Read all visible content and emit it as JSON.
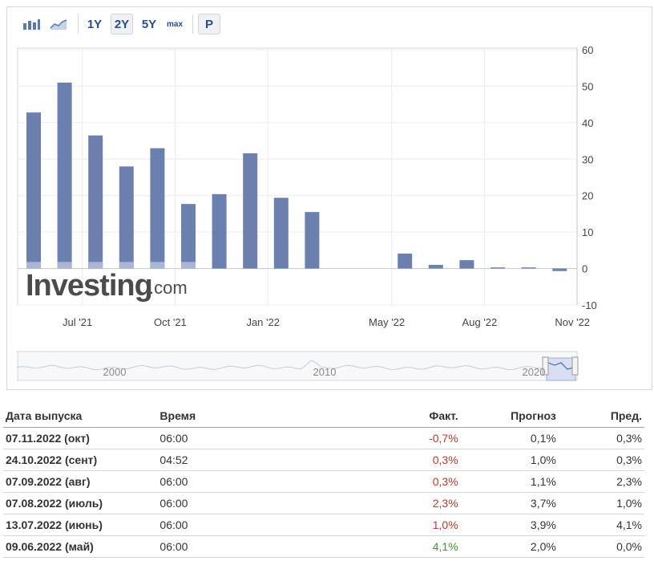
{
  "toolbar": {
    "buttons": [
      {
        "id": "bars",
        "icon": "bar-chart-icon"
      },
      {
        "id": "area",
        "icon": "area-chart-icon"
      },
      {
        "id": "1y",
        "label": "1Y"
      },
      {
        "id": "2y",
        "label": "2Y"
      },
      {
        "id": "5y",
        "label": "5Y"
      },
      {
        "id": "max",
        "label": "max"
      },
      {
        "id": "p",
        "label": "P"
      }
    ],
    "active": "2y"
  },
  "chart_data": {
    "type": "bar",
    "dates": [
      "2021-06",
      "2021-07",
      "2021-08",
      "2021-09",
      "2021-10",
      "2021-11",
      "2021-12",
      "2022-01",
      "2022-02",
      "2022-03",
      "2022-04",
      "2022-05",
      "2022-06",
      "2022-07",
      "2022-08",
      "2022-09",
      "2022-10",
      "2022-11"
    ],
    "series": [
      {
        "values": [
          42.8,
          51.0,
          36.5,
          28.0,
          33.0,
          17.7,
          20.4,
          31.6,
          19.4,
          15.5,
          null,
          null,
          4.1,
          1.0,
          2.3,
          0.3,
          0.3,
          -0.7
        ]
      },
      {
        "values": [
          1.8,
          1.8,
          1.8,
          1.8,
          1.8,
          1.8,
          null,
          null,
          null,
          null,
          null,
          null,
          null,
          null,
          null,
          null,
          null,
          null
        ]
      }
    ],
    "ylim": [
      -10,
      60
    ],
    "yticks": [
      -10,
      0,
      10,
      20,
      30,
      40,
      50,
      60
    ],
    "xticks": [
      {
        "label": "Jul '21",
        "date": "2021-07"
      },
      {
        "label": "Oct '21",
        "date": "2021-10"
      },
      {
        "label": "Jan '22",
        "date": "2022-01"
      },
      {
        "label": "May '22",
        "date": "2022-05"
      },
      {
        "label": "Aug '22",
        "date": "2022-08"
      },
      {
        "label": "Nov '22",
        "date": "2022-11"
      }
    ],
    "bar_color": "#6c80b0",
    "forecast_color": "#aab6d6",
    "grid": true,
    "watermark": {
      "brand": "Investing",
      "suffix": ".com"
    }
  },
  "navigator": {
    "labels": [
      "2000",
      "2010",
      "2020"
    ]
  },
  "table": {
    "headers": {
      "date": "Дата выпуска",
      "time": "Время",
      "actual": "Факт.",
      "forecast": "Прогноз",
      "previous": "Пред."
    },
    "rows": [
      {
        "date": "07.11.2022 (окт)",
        "time": "06:00",
        "actual": "-0,7%",
        "actual_trend": "neg",
        "forecast": "0,1%",
        "previous": "0,3%"
      },
      {
        "date": "24.10.2022 (сент)",
        "time": "04:52",
        "actual": "0,3%",
        "actual_trend": "neg",
        "forecast": "1,0%",
        "previous": "0,3%"
      },
      {
        "date": "07.09.2022 (авг)",
        "time": "06:00",
        "actual": "0,3%",
        "actual_trend": "neg",
        "forecast": "1,1%",
        "previous": "2,3%"
      },
      {
        "date": "07.08.2022 (июль)",
        "time": "06:00",
        "actual": "2,3%",
        "actual_trend": "neg",
        "forecast": "3,7%",
        "previous": "1,0%"
      },
      {
        "date": "13.07.2022 (июнь)",
        "time": "06:00",
        "actual": "1,0%",
        "actual_trend": "neg",
        "forecast": "3,9%",
        "previous": "4,1%"
      },
      {
        "date": "09.06.2022 (май)",
        "time": "06:00",
        "actual": "4,1%",
        "actual_trend": "pos",
        "forecast": "2,0%",
        "previous": "0,0%"
      }
    ]
  }
}
